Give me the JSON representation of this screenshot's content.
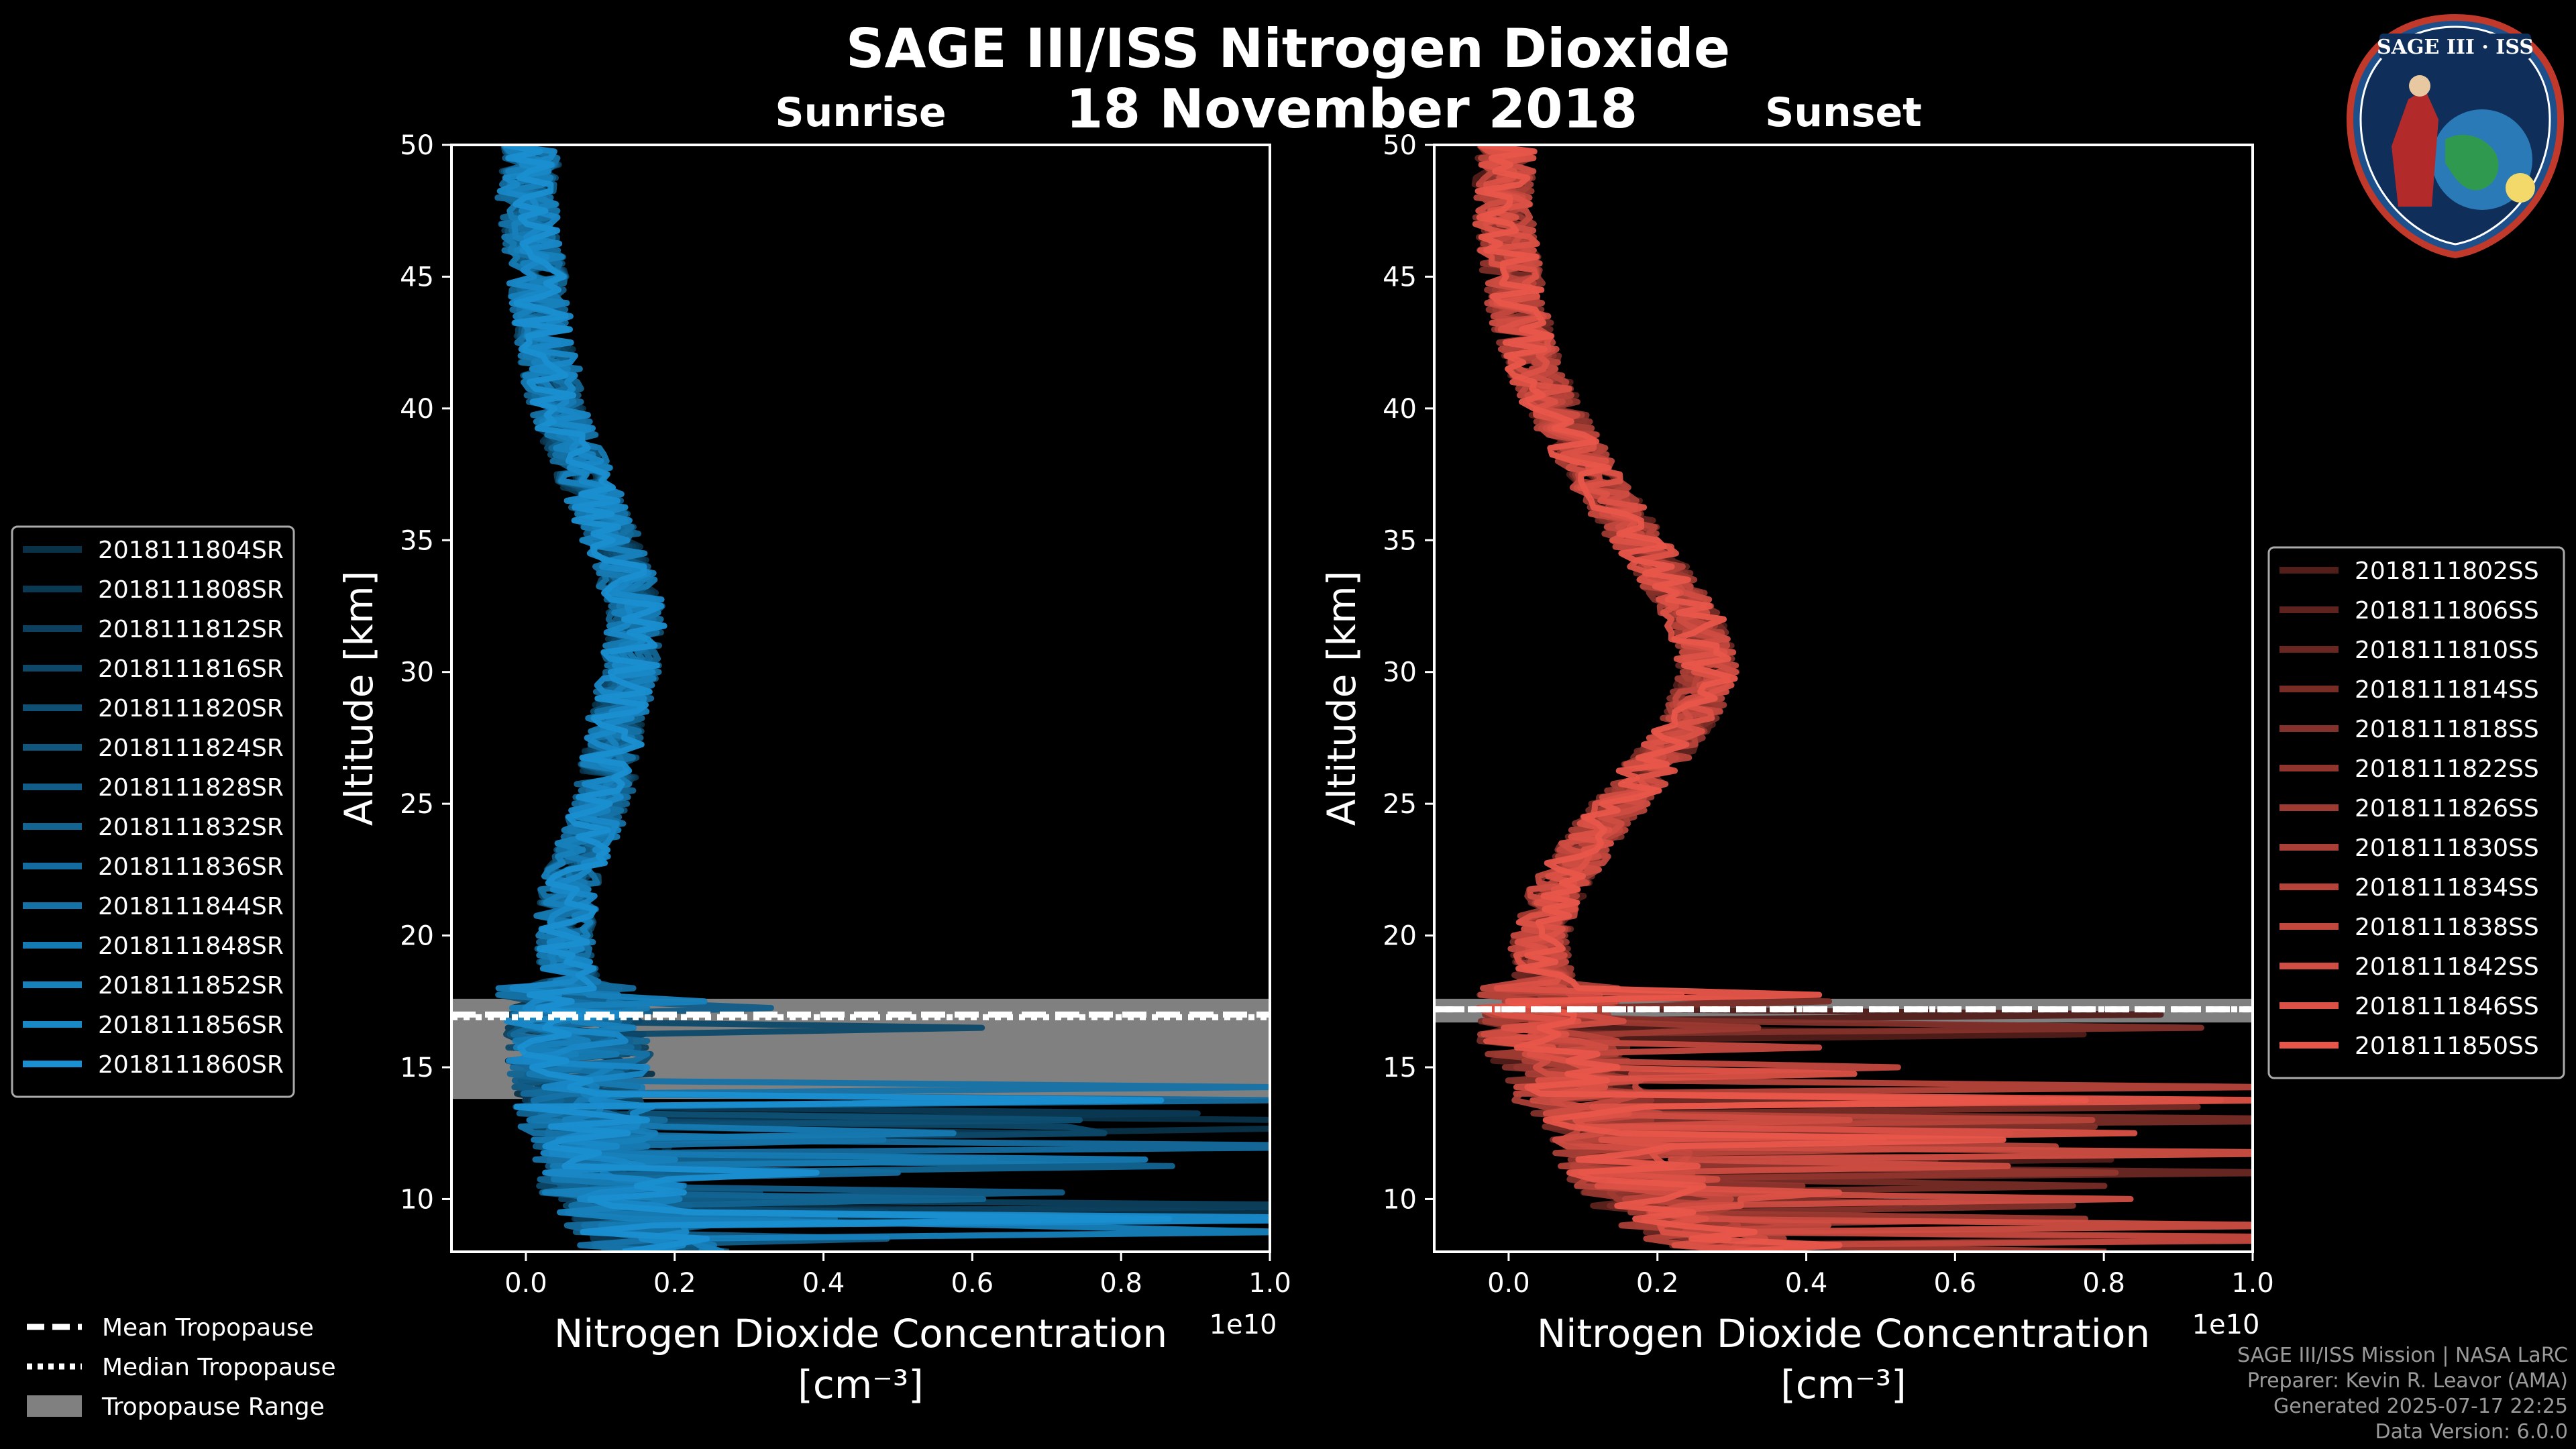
{
  "title": "SAGE III/ISS Nitrogen Dioxide",
  "date": "18 November 2018",
  "badge_text": "SAGE III · ISS",
  "credits": [
    "SAGE III/ISS Mission | NASA LaRC",
    "Preparer: Kevin R. Leavor (AMA)",
    "Generated 2025-07-17 22:25",
    "Data Version: 6.0.0"
  ],
  "tropopause_legend": [
    {
      "label": "Mean Tropopause",
      "style": "dashed"
    },
    {
      "label": "Median Tropopause",
      "style": "dotted"
    },
    {
      "label": "Tropopause Range",
      "style": "band"
    }
  ],
  "colors": {
    "sunrise": "#1a8fd1",
    "sunset": "#e8564a",
    "tropopause_band": "#808080",
    "background": "#000000"
  },
  "chart_data": [
    {
      "type": "line",
      "panel": "Sunrise",
      "xlabel": "Nitrogen Dioxide Concentration",
      "xunit": "[cm⁻³]",
      "xscale_label": "1e10",
      "ylabel": "Altitude [km]",
      "xlim": [
        -0.1,
        1.0
      ],
      "ylim": [
        8,
        50
      ],
      "xticks": [
        "0.0",
        "0.2",
        "0.4",
        "0.6",
        "0.8",
        "1.0"
      ],
      "yticks": [
        "10",
        "15",
        "20",
        "25",
        "30",
        "35",
        "40",
        "45",
        "50"
      ],
      "tropopause": {
        "mean": 17.0,
        "median": 16.9,
        "range": [
          13.8,
          17.6
        ]
      },
      "mean_profile": {
        "altitude": [
          50,
          48,
          46,
          44,
          42,
          40,
          38,
          36,
          34,
          32,
          30,
          28,
          26,
          24,
          22,
          20,
          18,
          16,
          14,
          12,
          10,
          9,
          8
        ],
        "value": [
          0.01,
          0.0,
          0.01,
          0.02,
          0.03,
          0.04,
          0.07,
          0.1,
          0.13,
          0.15,
          0.14,
          0.12,
          0.11,
          0.09,
          0.06,
          0.05,
          0.06,
          0.07,
          0.08,
          0.1,
          0.12,
          0.15,
          0.18
        ]
      },
      "series": [
        {
          "name": "2018111804SR"
        },
        {
          "name": "2018111808SR"
        },
        {
          "name": "2018111812SR"
        },
        {
          "name": "2018111816SR"
        },
        {
          "name": "2018111820SR"
        },
        {
          "name": "2018111824SR"
        },
        {
          "name": "2018111828SR"
        },
        {
          "name": "2018111832SR"
        },
        {
          "name": "2018111836SR"
        },
        {
          "name": "2018111844SR"
        },
        {
          "name": "2018111848SR"
        },
        {
          "name": "2018111852SR"
        },
        {
          "name": "2018111856SR"
        },
        {
          "name": "2018111860SR"
        }
      ]
    },
    {
      "type": "line",
      "panel": "Sunset",
      "xlabel": "Nitrogen Dioxide Concentration",
      "xunit": "[cm⁻³]",
      "xscale_label": "1e10",
      "ylabel": "Altitude [km]",
      "xlim": [
        -0.1,
        1.0
      ],
      "ylim": [
        8,
        50
      ],
      "xticks": [
        "0.0",
        "0.2",
        "0.4",
        "0.6",
        "0.8",
        "1.0"
      ],
      "yticks": [
        "10",
        "15",
        "20",
        "25",
        "30",
        "35",
        "40",
        "45",
        "50"
      ],
      "tropopause": {
        "mean": 17.2,
        "median": 17.2,
        "range": [
          16.7,
          17.6
        ]
      },
      "mean_profile": {
        "altitude": [
          50,
          48,
          46,
          44,
          42,
          40,
          38,
          36,
          34,
          32,
          30,
          28,
          26,
          24,
          22,
          20,
          18,
          16,
          14,
          12,
          10,
          9,
          8
        ],
        "value": [
          0.0,
          -0.01,
          0.0,
          0.01,
          0.03,
          0.06,
          0.1,
          0.15,
          0.2,
          0.25,
          0.27,
          0.24,
          0.18,
          0.12,
          0.07,
          0.04,
          0.05,
          0.06,
          0.1,
          0.15,
          0.2,
          0.25,
          0.3
        ]
      },
      "series": [
        {
          "name": "2018111802SS"
        },
        {
          "name": "2018111806SS"
        },
        {
          "name": "2018111810SS"
        },
        {
          "name": "2018111814SS"
        },
        {
          "name": "2018111818SS"
        },
        {
          "name": "2018111822SS"
        },
        {
          "name": "2018111826SS"
        },
        {
          "name": "2018111830SS"
        },
        {
          "name": "2018111834SS"
        },
        {
          "name": "2018111838SS"
        },
        {
          "name": "2018111842SS"
        },
        {
          "name": "2018111846SS"
        },
        {
          "name": "2018111850SS"
        }
      ]
    }
  ]
}
